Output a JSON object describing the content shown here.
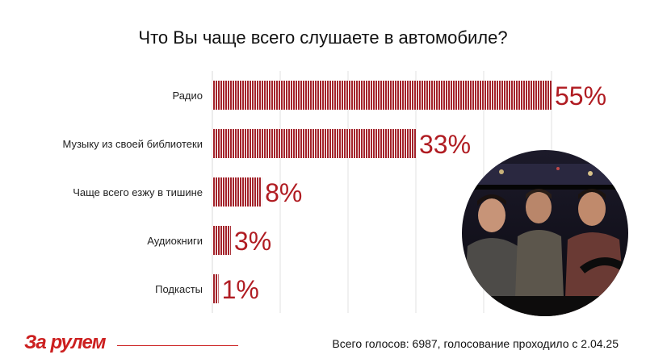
{
  "chart_data": {
    "type": "bar",
    "orientation": "horizontal",
    "title": "Что Вы чаще всего слушаете в автомобиле?",
    "categories": [
      "Радио",
      "Музыку из своей библиотеки",
      "Чаще всего езжу в тишине",
      "Аудиокниги",
      "Подкасты"
    ],
    "values": [
      55,
      33,
      8,
      3,
      1
    ],
    "value_labels": [
      "55%",
      "33%",
      "8%",
      "3%",
      "1%"
    ],
    "xlim": [
      0,
      55
    ],
    "unit": "%",
    "grid": true,
    "bar_color": "#a3222a",
    "label_color": "#b01c22"
  },
  "logo": {
    "text": "За рулем",
    "color": "#cc1f1f"
  },
  "footer": {
    "note": "Всего голосов: 6987, голосование проходило с 2.04.25"
  }
}
